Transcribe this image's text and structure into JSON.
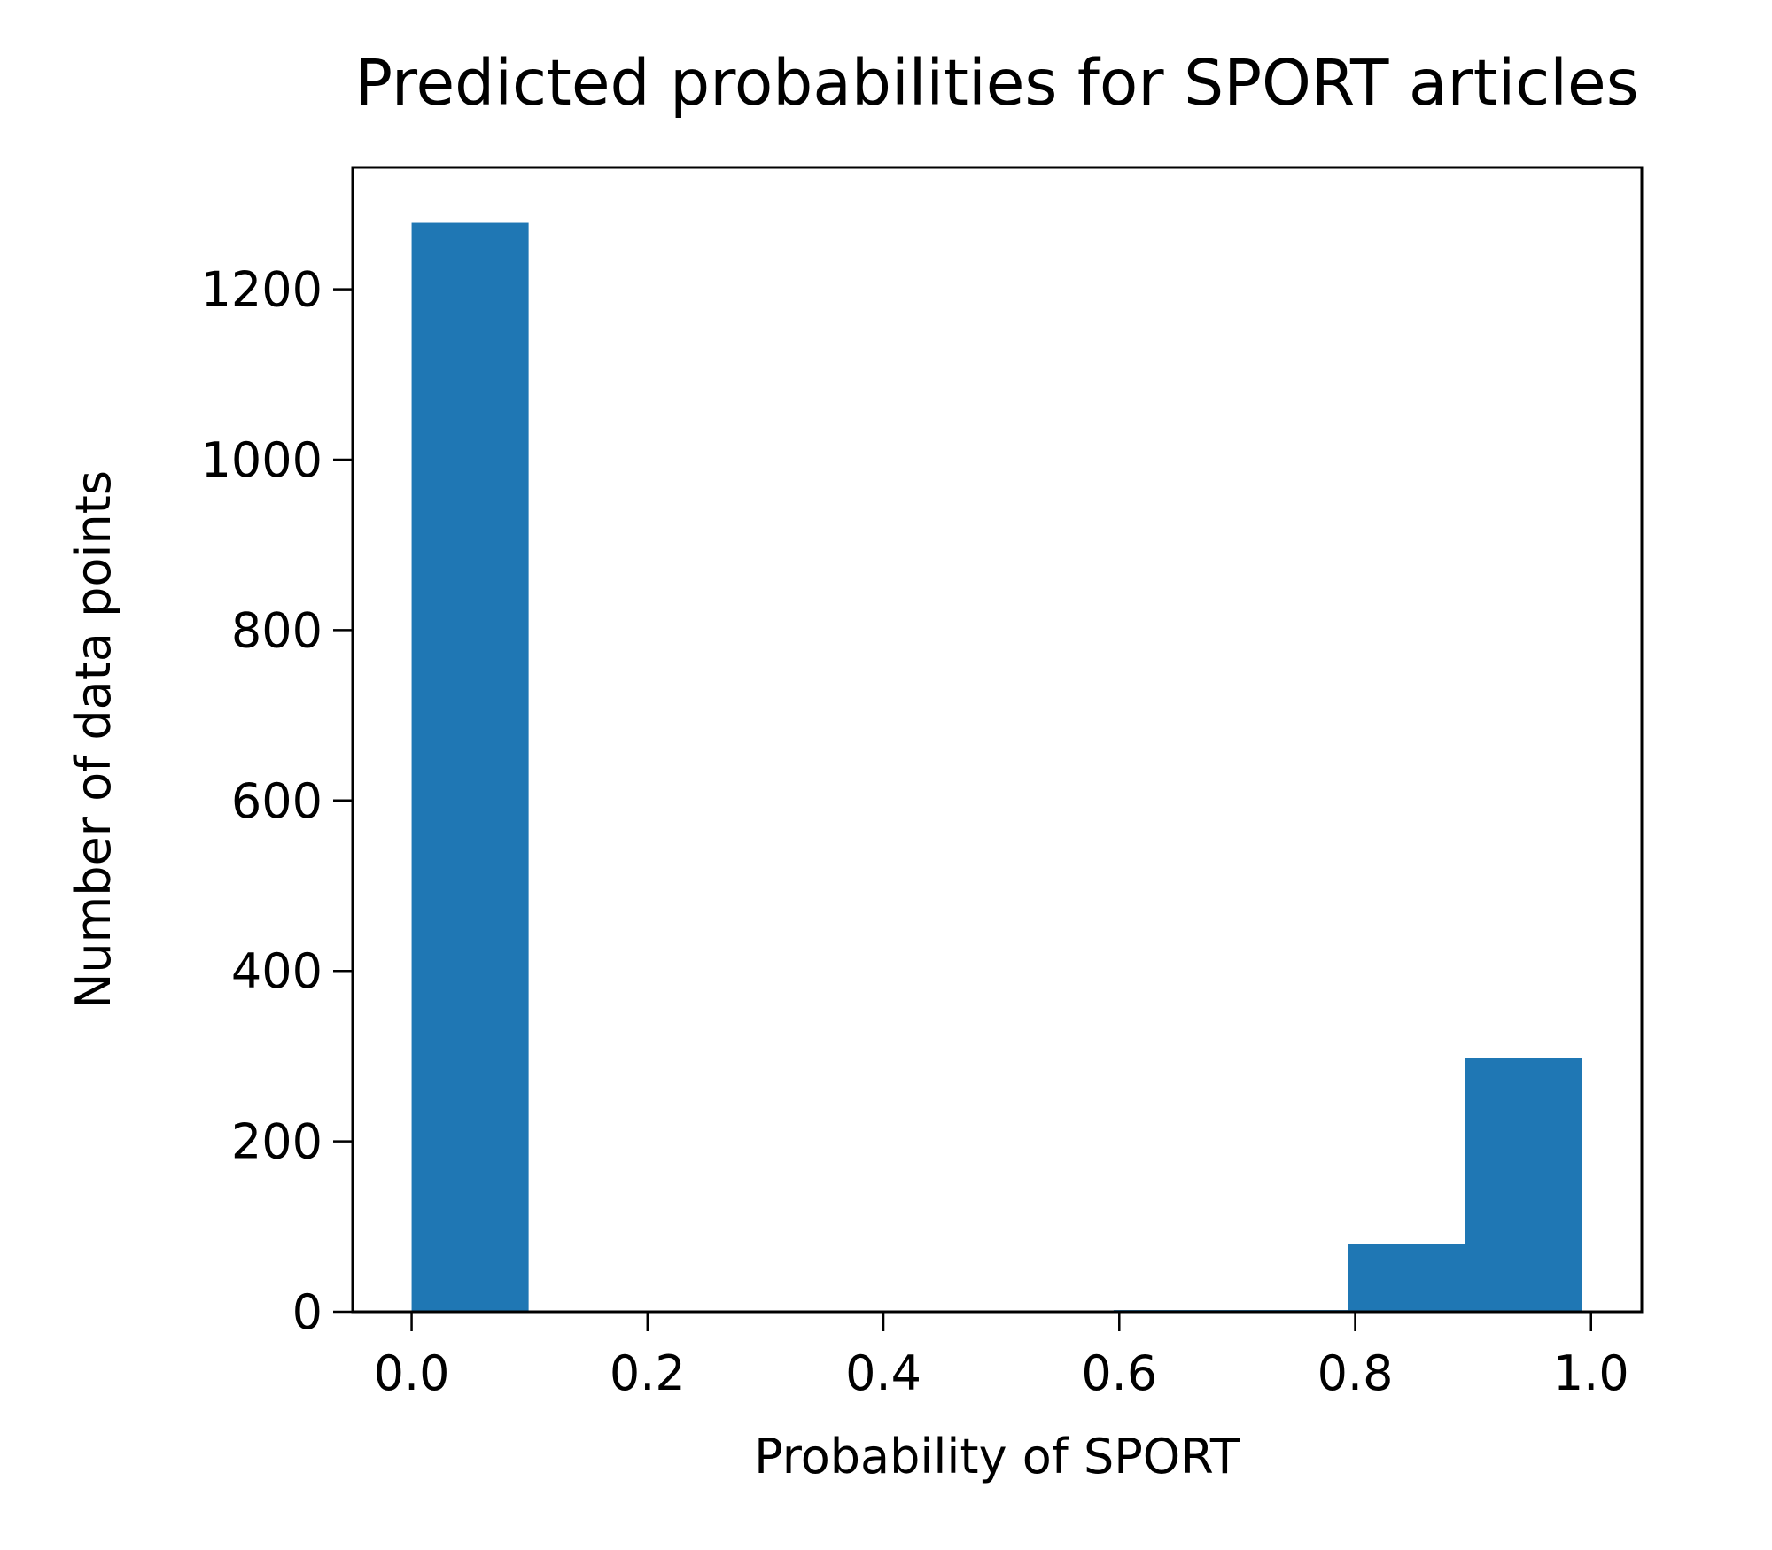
{
  "chart_data": {
    "type": "histogram",
    "title": "Predicted probabilities for SPORT articles",
    "xlabel": "Probability of SPORT",
    "ylabel": "Number of data points",
    "bins": [
      0.0,
      0.0992,
      0.1984,
      0.2976,
      0.3968,
      0.496,
      0.5952,
      0.6944,
      0.7936,
      0.8928,
      0.992
    ],
    "counts": [
      1278,
      0,
      0,
      0,
      0,
      0,
      2,
      2,
      80,
      298
    ],
    "color": "#1f77b4",
    "xlim": [
      -0.05,
      1.043
    ],
    "ylim": [
      0,
      1343
    ],
    "xticks": [
      {
        "value": 0,
        "label": "0.0"
      },
      0.2,
      0.4,
      0.6,
      0.8,
      {
        "value": 1,
        "label": "1.0"
      }
    ],
    "yticks": [
      0,
      200,
      400,
      600,
      800,
      1000,
      1200
    ],
    "grid": false
  }
}
